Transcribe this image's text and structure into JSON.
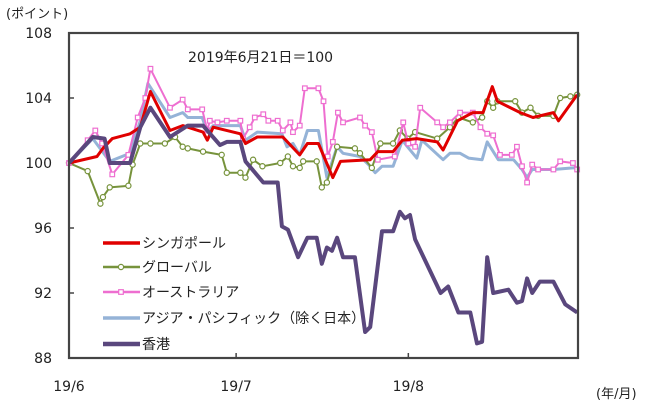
{
  "chart_data": {
    "type": "line",
    "y_unit_label": "(ポイント)",
    "x_unit_label": "(年/月)",
    "annotation": "2019年6月21日＝100",
    "ylim": [
      88,
      108
    ],
    "yticks": [
      88,
      92,
      96,
      100,
      104,
      108
    ],
    "xlim": [
      0,
      60
    ],
    "xticks": [
      {
        "label": "19/6",
        "x": 0
      },
      {
        "label": "19/7",
        "x": 19.7
      },
      {
        "label": "19/8",
        "x": 40.0
      }
    ],
    "grid": false,
    "legend_placement": "bottom-left inside",
    "series": [
      {
        "name": "シンガポール",
        "color": "#e00000",
        "marker": "none",
        "points": [
          [
            0,
            100
          ],
          [
            3.3,
            100.4
          ],
          [
            4.0,
            100.9
          ],
          [
            5.1,
            101.5
          ],
          [
            7.2,
            101.8
          ],
          [
            8.4,
            102.2
          ],
          [
            9.6,
            104.4
          ],
          [
            11.9,
            102
          ],
          [
            13.4,
            102.3
          ],
          [
            15.8,
            101.9
          ],
          [
            16.3,
            101.4
          ],
          [
            17.0,
            102.2
          ],
          [
            20.2,
            101.8
          ],
          [
            20.8,
            101.2
          ],
          [
            22.2,
            101.6
          ],
          [
            25.2,
            101.6
          ],
          [
            27.2,
            100.5
          ],
          [
            28.1,
            101.2
          ],
          [
            29.4,
            101.2
          ],
          [
            31.1,
            99.1
          ],
          [
            32.0,
            100.1
          ],
          [
            35.5,
            100.2
          ],
          [
            36.4,
            100.7
          ],
          [
            38.2,
            100.7
          ],
          [
            39.3,
            101.4
          ],
          [
            41.0,
            101.5
          ],
          [
            43.4,
            101.3
          ],
          [
            44.1,
            100.8
          ],
          [
            45.8,
            102.6
          ],
          [
            47.6,
            103.1
          ],
          [
            48.8,
            103.1
          ],
          [
            49.9,
            104.7
          ],
          [
            50.5,
            103.8
          ],
          [
            53.2,
            103.1
          ],
          [
            54.7,
            102.8
          ],
          [
            57.1,
            103.1
          ],
          [
            57.7,
            102.6
          ],
          [
            59.9,
            104.2
          ]
        ]
      },
      {
        "name": "グローバル",
        "color": "#77933c",
        "marker": "circle",
        "points": [
          [
            0,
            100
          ],
          [
            2.2,
            99.5
          ],
          [
            3.7,
            97.5
          ],
          [
            4.0,
            97.9
          ],
          [
            4.8,
            98.5
          ],
          [
            7.0,
            98.6
          ],
          [
            7.5,
            99.9
          ],
          [
            8.4,
            101.2
          ],
          [
            9.6,
            101.2
          ],
          [
            11.3,
            101.2
          ],
          [
            12.5,
            101.6
          ],
          [
            13.4,
            101
          ],
          [
            14.0,
            100.9
          ],
          [
            15.8,
            100.7
          ],
          [
            18.0,
            100.5
          ],
          [
            18.6,
            99.4
          ],
          [
            20.2,
            99.4
          ],
          [
            20.8,
            99.1
          ],
          [
            21.7,
            100.2
          ],
          [
            22.8,
            99.8
          ],
          [
            24.9,
            100
          ],
          [
            25.8,
            100.4
          ],
          [
            26.4,
            99.8
          ],
          [
            27.2,
            99.7
          ],
          [
            27.6,
            100.1
          ],
          [
            29.2,
            100.1
          ],
          [
            29.8,
            98.5
          ],
          [
            30.4,
            98.8
          ],
          [
            31.6,
            101
          ],
          [
            33.7,
            100.9
          ],
          [
            34.3,
            100.6
          ],
          [
            35.7,
            99.7
          ],
          [
            36.7,
            101.2
          ],
          [
            38.2,
            101.2
          ],
          [
            39.0,
            102
          ],
          [
            39.9,
            101.5
          ],
          [
            40.8,
            101.9
          ],
          [
            43.4,
            101.5
          ],
          [
            44.9,
            102.2
          ],
          [
            45.9,
            102.8
          ],
          [
            47.6,
            102.5
          ],
          [
            48.7,
            102.8
          ],
          [
            49.3,
            103.8
          ],
          [
            50.0,
            103.4
          ],
          [
            50.5,
            103.8
          ],
          [
            52.6,
            103.8
          ],
          [
            53.4,
            103.1
          ],
          [
            54.4,
            103.4
          ],
          [
            55.3,
            102.9
          ],
          [
            57.1,
            102.9
          ],
          [
            57.9,
            104
          ],
          [
            59.1,
            104.1
          ],
          [
            59.9,
            104.2
          ]
        ]
      },
      {
        "name": "オーストラリア",
        "color": "#ee6ed0",
        "marker": "square",
        "points": [
          [
            0,
            100
          ],
          [
            2.2,
            101.4
          ],
          [
            3.1,
            102
          ],
          [
            3.9,
            101.2
          ],
          [
            5.1,
            99.3
          ],
          [
            7.0,
            100.5
          ],
          [
            8.1,
            102.8
          ],
          [
            9.0,
            104
          ],
          [
            9.6,
            105.8
          ],
          [
            11.9,
            103.4
          ],
          [
            13.4,
            103.9
          ],
          [
            14.0,
            103.3
          ],
          [
            15.7,
            103.3
          ],
          [
            16.3,
            102
          ],
          [
            16.6,
            102.6
          ],
          [
            17.5,
            102.5
          ],
          [
            18.6,
            102.6
          ],
          [
            20.2,
            102.6
          ],
          [
            20.5,
            101.5
          ],
          [
            21.3,
            102.2
          ],
          [
            21.9,
            102.8
          ],
          [
            22.9,
            103
          ],
          [
            23.5,
            102.6
          ],
          [
            24.6,
            102.6
          ],
          [
            25.2,
            102
          ],
          [
            26.1,
            102.5
          ],
          [
            26.4,
            101.9
          ],
          [
            27.2,
            102.3
          ],
          [
            27.8,
            104.6
          ],
          [
            29.4,
            104.6
          ],
          [
            30.0,
            103.8
          ],
          [
            30.5,
            100.4
          ],
          [
            31.1,
            101.3
          ],
          [
            31.7,
            103.1
          ],
          [
            32.3,
            102.5
          ],
          [
            34.3,
            102.8
          ],
          [
            34.9,
            102.3
          ],
          [
            35.7,
            101.9
          ],
          [
            36.4,
            100.2
          ],
          [
            38.4,
            100.4
          ],
          [
            39.4,
            102.5
          ],
          [
            40.0,
            101.2
          ],
          [
            40.8,
            101
          ],
          [
            41.4,
            103.4
          ],
          [
            43.4,
            102.5
          ],
          [
            44.1,
            102.2
          ],
          [
            44.9,
            102.5
          ],
          [
            46.1,
            103.1
          ],
          [
            47.6,
            103.1
          ],
          [
            48.5,
            102.2
          ],
          [
            49.3,
            101.8
          ],
          [
            50.0,
            101.7
          ],
          [
            50.8,
            100.5
          ],
          [
            52.2,
            100.5
          ],
          [
            52.8,
            101
          ],
          [
            53.4,
            99.8
          ],
          [
            54.0,
            98.8
          ],
          [
            54.6,
            99.9
          ],
          [
            55.3,
            99.6
          ],
          [
            57.1,
            99.6
          ],
          [
            57.9,
            100.1
          ],
          [
            59.4,
            100
          ],
          [
            59.9,
            99.6
          ]
        ]
      },
      {
        "name": "アジア・パシフィック（除く日本）",
        "color": "#95b3d7",
        "marker": "none",
        "points": [
          [
            0,
            100
          ],
          [
            2.8,
            101.5
          ],
          [
            4.8,
            100.1
          ],
          [
            7.2,
            100.6
          ],
          [
            8.4,
            102.6
          ],
          [
            9.3,
            104.9
          ],
          [
            11.9,
            102.8
          ],
          [
            13.4,
            103.1
          ],
          [
            14.0,
            102.8
          ],
          [
            15.7,
            102.8
          ],
          [
            16.3,
            101.9
          ],
          [
            17.0,
            102.3
          ],
          [
            20.2,
            102.3
          ],
          [
            20.8,
            101.4
          ],
          [
            22.2,
            101.9
          ],
          [
            25.1,
            101.8
          ],
          [
            25.7,
            101
          ],
          [
            26.4,
            101.2
          ],
          [
            27.2,
            100.5
          ],
          [
            28.1,
            102
          ],
          [
            29.4,
            102
          ],
          [
            30.4,
            99.1
          ],
          [
            31.6,
            101
          ],
          [
            32.3,
            100.6
          ],
          [
            34.3,
            100.4
          ],
          [
            35.3,
            99.9
          ],
          [
            36.1,
            99.4
          ],
          [
            36.9,
            99.8
          ],
          [
            38.2,
            99.8
          ],
          [
            39.3,
            101.4
          ],
          [
            39.9,
            101
          ],
          [
            41.0,
            100.3
          ],
          [
            41.6,
            101.4
          ],
          [
            44.1,
            100.2
          ],
          [
            44.9,
            100.6
          ],
          [
            46.1,
            100.6
          ],
          [
            47.1,
            100.3
          ],
          [
            48.7,
            100.2
          ],
          [
            49.3,
            101.3
          ],
          [
            50.6,
            100.2
          ],
          [
            52.4,
            100.2
          ],
          [
            53.4,
            99.6
          ],
          [
            54.0,
            99.1
          ],
          [
            54.6,
            99.6
          ],
          [
            57.1,
            99.6
          ],
          [
            59.4,
            99.7
          ],
          [
            59.9,
            99.7
          ]
        ]
      },
      {
        "name": "香港",
        "color": "#5a477d",
        "marker": "none",
        "points": [
          [
            0,
            100
          ],
          [
            2.8,
            101.6
          ],
          [
            4.2,
            101.5
          ],
          [
            4.8,
            100
          ],
          [
            7.2,
            100
          ],
          [
            8.4,
            102.2
          ],
          [
            9.6,
            103.4
          ],
          [
            11.9,
            101.6
          ],
          [
            14.0,
            102.3
          ],
          [
            15.8,
            102.3
          ],
          [
            17.8,
            101.1
          ],
          [
            18.6,
            101.3
          ],
          [
            20.2,
            101.3
          ],
          [
            20.8,
            100.1
          ],
          [
            22.9,
            98.8
          ],
          [
            24.6,
            98.8
          ],
          [
            25.1,
            96.1
          ],
          [
            25.8,
            95.9
          ],
          [
            27.0,
            94.2
          ],
          [
            28.1,
            95.4
          ],
          [
            29.2,
            95.4
          ],
          [
            29.8,
            93.8
          ],
          [
            30.4,
            94.8
          ],
          [
            31.0,
            94.6
          ],
          [
            31.6,
            95.4
          ],
          [
            32.3,
            94.2
          ],
          [
            33.7,
            94.2
          ],
          [
            34.9,
            89.6
          ],
          [
            35.5,
            89.9
          ],
          [
            36.9,
            95.8
          ],
          [
            38.2,
            95.8
          ],
          [
            39.0,
            97
          ],
          [
            39.6,
            96.6
          ],
          [
            40.2,
            96.8
          ],
          [
            40.8,
            95.3
          ],
          [
            43.8,
            92
          ],
          [
            44.7,
            92.4
          ],
          [
            45.9,
            90.8
          ],
          [
            47.3,
            90.8
          ],
          [
            48.1,
            88.9
          ],
          [
            48.7,
            89
          ],
          [
            49.3,
            94.2
          ],
          [
            50.0,
            92
          ],
          [
            51.8,
            92.2
          ],
          [
            52.8,
            91.4
          ],
          [
            53.4,
            91.5
          ],
          [
            54.0,
            92.9
          ],
          [
            54.6,
            92
          ],
          [
            55.5,
            92.7
          ],
          [
            57.1,
            92.7
          ],
          [
            58.5,
            91.3
          ],
          [
            59.9,
            90.8
          ]
        ]
      }
    ]
  }
}
